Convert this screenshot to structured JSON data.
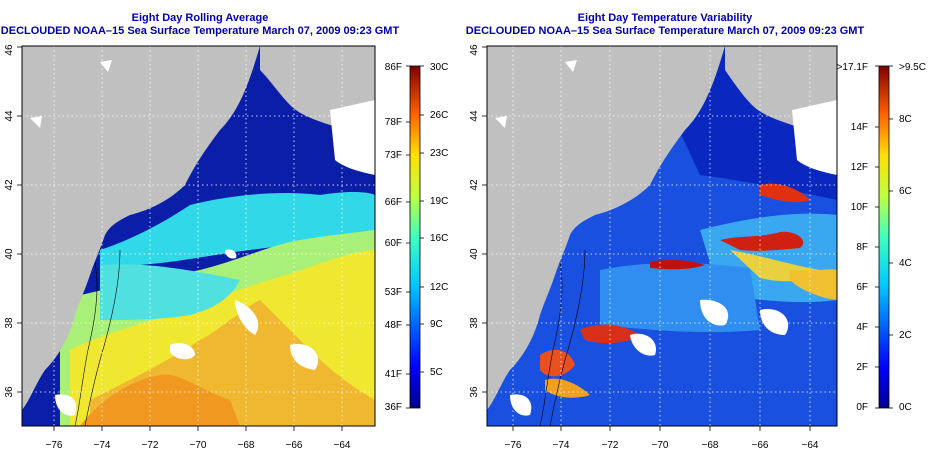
{
  "left_panel": {
    "title_line1": "Eight Day Rolling Average",
    "title_line2": "DECLOUDED NOAA–15 Sea Surface Temperature March 07, 2009 09:23 GMT",
    "colorbar_f_labels": [
      "86F",
      "78F",
      "73F",
      "66F",
      "60F",
      "53F",
      "48F",
      "41F",
      "36F"
    ],
    "colorbar_c_labels": [
      "30C",
      "26C",
      "23C",
      "19C",
      "16C",
      "12C",
      "9C",
      "5C"
    ]
  },
  "right_panel": {
    "title_line1": "Eight Day Temperature Variability",
    "title_line2": "DECLOUDED NOAA–15 Sea Surface Temperature March 07, 2009 09:23 GMT",
    "colorbar_f_labels": [
      ">17.1F",
      "14F",
      "12F",
      "10F",
      "8F",
      "6F",
      "4F",
      "2F",
      "0F"
    ],
    "colorbar_c_labels": [
      ">9.5C",
      "8C",
      "6C",
      "4C",
      "2C",
      "0C"
    ]
  },
  "longitude_ticks": [
    "−76",
    "−74",
    "−72",
    "−70",
    "−68",
    "−66",
    "−64"
  ],
  "latitude_ticks": [
    "36",
    "38",
    "40",
    "42",
    "44",
    "46"
  ],
  "colors": {
    "land": "#c0c0c0",
    "deep_blue": "#0a1ea8",
    "title_blue": "#0000aa",
    "colormap": [
      "#00008f",
      "#0000ff",
      "#0080ff",
      "#00ffff",
      "#80ff80",
      "#ffff00",
      "#ff8000",
      "#ff0000",
      "#800000"
    ]
  }
}
